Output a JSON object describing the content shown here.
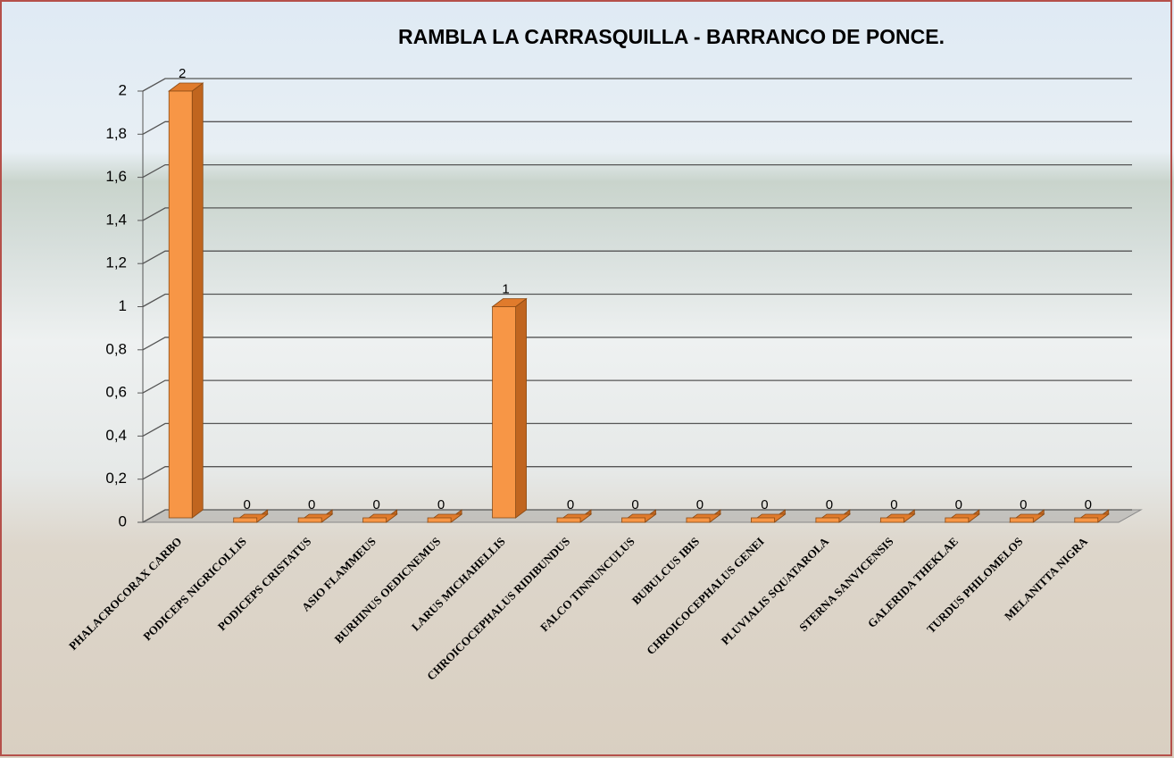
{
  "chart_data": {
    "type": "bar3d",
    "title": "RAMBLA LA CARRASQUILLA - BARRANCO DE PONCE.",
    "categories": [
      "PHALACROCORAX CARBO",
      "PODICEPS NIGRICOLLIS",
      "PODICEPS CRISTATUS",
      "ASIO FLAMMEUS",
      "BURHINUS OEDICNEMUS",
      "LARUS MICHAHELLIS",
      "CHROICOCEPHALUS RIDIBUNDUS",
      "FALCO TINNUNCULUS",
      "BUBULCUS IBIS",
      "CHROICOCEPHALUS GENEI",
      "PLUVIALIS SQUATAROLA",
      "STERNA SANVICENSIS",
      "GALERIDA THEKLAE",
      "TURDUS PHILOMELOS",
      "MELANITTA NIGRA"
    ],
    "values": [
      2,
      0,
      0,
      0,
      0,
      1,
      0,
      0,
      0,
      0,
      0,
      0,
      0,
      0,
      0
    ],
    "color": "#f79646",
    "ylim": [
      0,
      2
    ],
    "yticks": [
      0,
      {
        "value": 0.2,
        "label": "0,2"
      },
      {
        "value": 0.4,
        "label": "0,4"
      },
      {
        "value": 0.6,
        "label": "0,6"
      },
      {
        "value": 0.8,
        "label": "0,8"
      },
      1,
      {
        "value": 1.2,
        "label": "1,2"
      },
      {
        "value": 1.4,
        "label": "1,4"
      },
      {
        "value": 1.6,
        "label": "1,6"
      },
      {
        "value": 1.8,
        "label": "1,8"
      },
      2
    ],
    "grid": true
  }
}
